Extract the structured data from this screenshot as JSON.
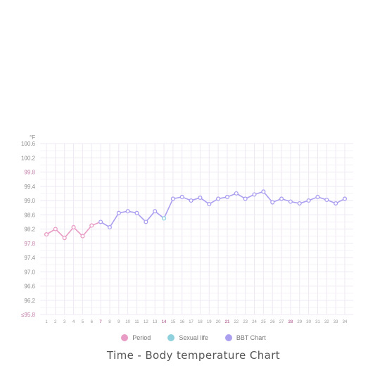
{
  "caption": "Time - Body temperature Chart",
  "legend": [
    {
      "label": "Period",
      "color": "#e89bc4"
    },
    {
      "label": "Sexual life",
      "color": "#8fd0dd"
    },
    {
      "label": "BBT Chart",
      "color": "#ab9ff0"
    }
  ],
  "chart_data": {
    "type": "line",
    "ylabel": "°F",
    "y_ticks": [
      "100.6",
      "100.2",
      "99.8",
      "99.4",
      "99.0",
      "98.6",
      "98.2",
      "97.8",
      "97.4",
      "97.0",
      "96.6",
      "96.2",
      "≤95.8"
    ],
    "highlighted_y_ticks": [
      "99.8",
      "97.8",
      "≤95.8"
    ],
    "ylim": [
      95.8,
      100.6
    ],
    "x": [
      1,
      2,
      3,
      4,
      5,
      6,
      7,
      8,
      9,
      10,
      11,
      12,
      13,
      14,
      15,
      16,
      17,
      18,
      19,
      20,
      21,
      22,
      23,
      24,
      25,
      26,
      27,
      28,
      29,
      30,
      31,
      32,
      33,
      34
    ],
    "highlighted_x_ticks": [
      7,
      14,
      21,
      28
    ],
    "values": [
      98.05,
      98.2,
      97.95,
      98.25,
      98.0,
      98.3,
      98.4,
      98.25,
      98.65,
      98.7,
      98.65,
      98.4,
      98.7,
      98.5,
      99.05,
      99.1,
      99.0,
      99.08,
      98.9,
      99.05,
      99.1,
      99.2,
      99.05,
      99.17,
      99.25,
      98.95,
      99.05,
      98.97,
      98.92,
      99.0,
      99.1,
      99.02,
      98.92,
      99.05
    ],
    "point_category": [
      "period",
      "period",
      "period",
      "period",
      "period",
      "period",
      "bbt",
      "bbt",
      "bbt",
      "bbt",
      "bbt",
      "bbt",
      "bbt",
      "sexual",
      "bbt",
      "bbt",
      "bbt",
      "bbt",
      "bbt",
      "bbt",
      "bbt",
      "bbt",
      "bbt",
      "bbt",
      "bbt",
      "bbt",
      "bbt",
      "bbt",
      "bbt",
      "bbt",
      "bbt",
      "bbt",
      "bbt",
      "bbt"
    ],
    "grid": true
  },
  "colors": {
    "period": "#e89bc4",
    "sexual": "#8fd0dd",
    "bbt": "#ab9ff0",
    "grid": "#eee8f2",
    "highlight_tick": "#c07aa6",
    "tick": "#8a8a8a"
  }
}
